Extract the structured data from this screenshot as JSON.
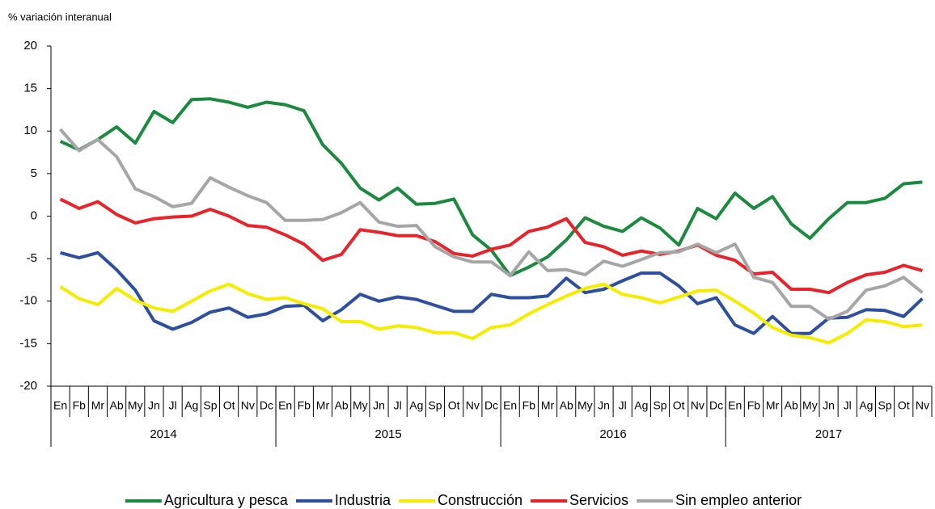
{
  "chart_data": {
    "type": "line",
    "y_label": "% variación interanual",
    "categories": [
      "En",
      "Fb",
      "Mr",
      "Ab",
      "My",
      "Jn",
      "Jl",
      "Ag",
      "Sp",
      "Ot",
      "Nv",
      "Dc",
      "En",
      "Fb",
      "Mr",
      "Ab",
      "My",
      "Jn",
      "Jl",
      "Ag",
      "Sp",
      "Ot",
      "Nv",
      "Dc",
      "En",
      "Fb",
      "Mr",
      "Ab",
      "My",
      "Jn",
      "Jl",
      "Ag",
      "Sp",
      "Ot",
      "Nv",
      "Dc",
      "En",
      "Fb",
      "Mr",
      "Ab",
      "My",
      "Jn",
      "Jl",
      "Ag",
      "Sp",
      "Ot",
      "Nv"
    ],
    "years": [
      "2014",
      "2015",
      "2016",
      "2017"
    ],
    "series": [
      {
        "name": "Agricultura y pesca",
        "color": "#1a8a3c",
        "values": [
          8.8,
          7.8,
          9.0,
          10.5,
          8.6,
          12.3,
          11.0,
          13.7,
          13.8,
          13.4,
          12.8,
          13.4,
          13.1,
          12.4,
          8.4,
          6.2,
          3.3,
          1.9,
          3.3,
          1.4,
          1.5,
          2.0,
          -2.2,
          -4.0,
          -7.0,
          -6.0,
          -4.8,
          -2.8,
          -0.2,
          -1.2,
          -1.8,
          -0.2,
          -1.4,
          -3.4,
          0.9,
          -0.3,
          2.7,
          0.9,
          2.3,
          -0.9,
          -2.6,
          -0.3,
          1.6,
          1.6,
          2.1,
          3.8,
          4.0
        ]
      },
      {
        "name": "Industria",
        "color": "#2e4fa0",
        "values": [
          -4.3,
          -4.9,
          -4.3,
          -6.3,
          -8.7,
          -12.3,
          -13.3,
          -12.5,
          -11.3,
          -10.8,
          -11.9,
          -11.5,
          -10.6,
          -10.5,
          -12.3,
          -11.0,
          -9.2,
          -10.0,
          -9.5,
          -9.8,
          -10.5,
          -11.2,
          -11.2,
          -9.2,
          -9.6,
          -9.6,
          -9.4,
          -7.3,
          -9.0,
          -8.6,
          -7.6,
          -6.7,
          -6.7,
          -8.2,
          -10.3,
          -9.6,
          -12.8,
          -13.8,
          -11.8,
          -13.8,
          -13.8,
          -12.0,
          -11.9,
          -11.0,
          -11.1,
          -11.8,
          -9.7
        ]
      },
      {
        "name": "Construcción",
        "color": "#f5ec00",
        "values": [
          -8.3,
          -9.7,
          -10.4,
          -8.5,
          -9.9,
          -10.8,
          -11.2,
          -10.0,
          -8.8,
          -8.0,
          -9.1,
          -9.8,
          -9.6,
          -10.3,
          -10.9,
          -12.4,
          -12.4,
          -13.3,
          -12.9,
          -13.1,
          -13.7,
          -13.7,
          -14.4,
          -13.1,
          -12.8,
          -11.5,
          -10.4,
          -9.4,
          -8.5,
          -8.0,
          -9.2,
          -9.6,
          -10.2,
          -9.5,
          -8.8,
          -8.7,
          -10.0,
          -11.4,
          -13.1,
          -14.0,
          -14.3,
          -14.9,
          -13.8,
          -12.2,
          -12.4,
          -13.0,
          -12.8
        ]
      },
      {
        "name": "Servicios",
        "color": "#e8242a",
        "values": [
          2.0,
          0.9,
          1.7,
          0.2,
          -0.8,
          -0.3,
          -0.1,
          0.0,
          0.8,
          0.0,
          -1.1,
          -1.3,
          -2.2,
          -3.3,
          -5.2,
          -4.5,
          -1.6,
          -1.9,
          -2.3,
          -2.3,
          -3.0,
          -4.4,
          -4.7,
          -3.9,
          -3.4,
          -1.8,
          -1.3,
          -0.3,
          -3.1,
          -3.6,
          -4.6,
          -4.1,
          -4.5,
          -4.1,
          -3.4,
          -4.6,
          -5.2,
          -6.8,
          -6.6,
          -8.6,
          -8.6,
          -9.0,
          -7.8,
          -6.9,
          -6.6,
          -5.8,
          -6.4
        ]
      },
      {
        "name": "Sin empleo anterior",
        "color": "#a6a6a6",
        "values": [
          10.2,
          7.7,
          9.0,
          7.0,
          3.2,
          2.3,
          1.1,
          1.5,
          4.5,
          3.4,
          2.4,
          1.6,
          -0.5,
          -0.5,
          -0.4,
          0.4,
          1.6,
          -0.7,
          -1.2,
          -1.1,
          -3.6,
          -4.8,
          -5.4,
          -5.4,
          -7.0,
          -4.2,
          -6.4,
          -6.3,
          -6.9,
          -5.3,
          -5.9,
          -5.1,
          -4.3,
          -4.2,
          -3.3,
          -4.3,
          -3.3,
          -7.2,
          -7.8,
          -10.6,
          -10.6,
          -12.1,
          -11.2,
          -8.7,
          -8.2,
          -7.2,
          -9.0
        ]
      }
    ],
    "ylim": [
      -20,
      20
    ],
    "yticks": [
      -20,
      -15,
      -10,
      -5,
      0,
      5,
      10,
      15,
      20
    ],
    "grid": false,
    "legend": "bottom"
  }
}
